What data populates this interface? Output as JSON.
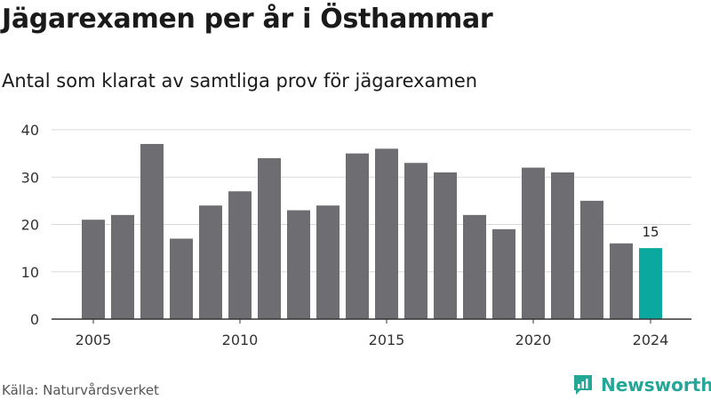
{
  "title": "Jägarexamen per år i Östhammar",
  "subtitle": "Antal som klarat av samtliga prov för jägarexamen",
  "source": "Källa: Naturvårdsverket",
  "brand": "Newsworthy",
  "colors": {
    "bar": "#6e6d72",
    "highlight": "#0aa89e",
    "grid": "#d9d9d9",
    "axis": "#333333",
    "brand": "#25a798"
  },
  "chart_data": {
    "type": "bar",
    "title": "Jägarexamen per år i Östhammar",
    "subtitle": "Antal som klarat av samtliga prov för jägarexamen",
    "xlabel": "",
    "ylabel": "",
    "categories": [
      2005,
      2006,
      2007,
      2008,
      2009,
      2010,
      2011,
      2012,
      2013,
      2014,
      2015,
      2016,
      2017,
      2018,
      2019,
      2020,
      2021,
      2022,
      2023,
      2024
    ],
    "values": [
      21,
      22,
      37,
      17,
      24,
      27,
      34,
      23,
      24,
      35,
      36,
      33,
      31,
      22,
      19,
      32,
      31,
      25,
      16,
      15
    ],
    "ylim": [
      0,
      40
    ],
    "yticks": [
      0,
      10,
      20,
      30,
      40
    ],
    "xticks": [
      2005,
      2010,
      2015,
      2020,
      2024
    ],
    "highlight_category": 2024,
    "data_labels": [
      {
        "category": 2024,
        "text": "15"
      }
    ],
    "grid": true,
    "legend": "none"
  }
}
